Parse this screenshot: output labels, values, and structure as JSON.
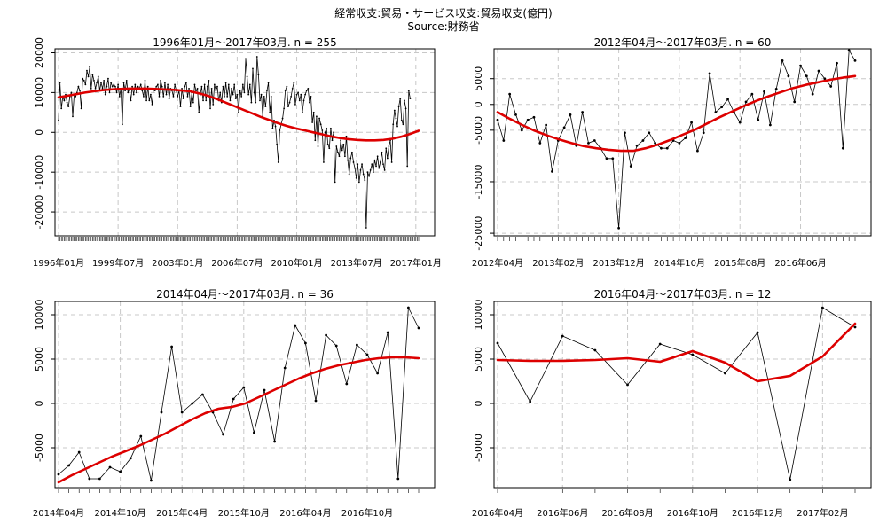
{
  "header": {
    "title": "経常収支:貿易・サービス収支:貿易収支(億円)",
    "source": "Source:財務省"
  },
  "colors": {
    "data_line": "#000000",
    "trend_line": "#dd0000",
    "grid": "#c8c8c8"
  },
  "chart_data": [
    {
      "type": "line",
      "title": "1996年01月～2017年03月. n = 255",
      "xlabel": "",
      "ylabel": "",
      "ylim": [
        -26000,
        21000
      ],
      "yticks": [
        -20000,
        -10000,
        0,
        10000,
        20000
      ],
      "xtick_labels": [
        "1996年01月",
        "1999年07月",
        "2003年01月",
        "2006年07月",
        "2010年01月",
        "2013年07月",
        "2017年01月"
      ],
      "xtick_index": [
        0,
        42,
        84,
        126,
        168,
        210,
        252
      ],
      "n": 255,
      "grid": true,
      "series": [
        {
          "values": [
            3000,
            12500,
            6000,
            9000,
            8000,
            9500,
            7500,
            6500,
            9000,
            10000,
            4000,
            9500,
            9000,
            10000,
            11500,
            10500,
            6000,
            13500,
            13000,
            12000,
            15500,
            14000,
            16500,
            11000,
            14500,
            13000,
            11000,
            12500,
            14000,
            10500,
            12500,
            11000,
            13000,
            9500,
            11500,
            13500,
            10000,
            12500,
            11500,
            12000,
            11500,
            10000,
            12000,
            9000,
            11000,
            2000,
            12500,
            10500,
            13000,
            10000,
            11000,
            8000,
            11500,
            9500,
            12000,
            10000,
            11500,
            11000,
            12000,
            10500,
            9000,
            13000,
            8000,
            11500,
            8000,
            9500,
            7000,
            11000,
            10500,
            11500,
            12000,
            9000,
            13000,
            11500,
            9000,
            12500,
            9500,
            12000,
            8500,
            11000,
            10500,
            9000,
            12000,
            10500,
            9000,
            10500,
            6500,
            11000,
            8500,
            11500,
            12500,
            9000,
            11000,
            6500,
            10000,
            7500,
            12000,
            10500,
            11000,
            5000,
            9500,
            11500,
            8000,
            12000,
            8000,
            11500,
            13000,
            6000,
            11000,
            7000,
            12000,
            10500,
            11500,
            8000,
            10000,
            7500,
            11500,
            9000,
            12500,
            9000,
            12000,
            8000,
            11000,
            9500,
            12000,
            8500,
            9500,
            5000,
            10500,
            9000,
            12000,
            10000,
            18500,
            14000,
            9500,
            12000,
            7500,
            16000,
            10000,
            7500,
            19000,
            14500,
            8000,
            9500,
            4000,
            9000,
            6500,
            10500,
            12500,
            5000,
            9000,
            1000,
            3000,
            1500,
            -3000,
            -7500,
            500,
            2000,
            3500,
            6000,
            10500,
            11500,
            6500,
            7500,
            9000,
            11000,
            12500,
            7000,
            9500,
            10000,
            8000,
            9500,
            5000,
            8000,
            9500,
            10500,
            11000,
            7500,
            9000,
            2500,
            5000,
            -2000,
            4000,
            -3500,
            3500,
            2000,
            500,
            -7500,
            0,
            1000,
            -3000,
            -4000,
            1000,
            -2000,
            0,
            -12500,
            -3500,
            -5000,
            -6000,
            -2000,
            -4500,
            -3000,
            -6000,
            -1000,
            -7000,
            -10500,
            -6500,
            -5000,
            -7500,
            -9000,
            -11500,
            -8000,
            -12500,
            -9500,
            -8000,
            -10500,
            -12000,
            -24000,
            -10000,
            -11000,
            -9500,
            -8000,
            -10000,
            -7000,
            -8500,
            -6000,
            -9000,
            -7500,
            -5000,
            -8000,
            -9500,
            -4000,
            -6500,
            -3500,
            -2000,
            -7500,
            2000,
            5500,
            3500,
            1500,
            6500,
            8500,
            3000,
            2000,
            8000,
            6000,
            -8500,
            10500,
            8500
          ]
        },
        {
          "values": [
            8800,
            9200,
            9600,
            10000,
            10300,
            10600,
            10800,
            10900,
            11000,
            11000,
            11000,
            10900,
            10800,
            10700,
            10500,
            10300,
            9800,
            9200,
            8400,
            7500,
            6600,
            5700,
            4800,
            3900,
            3100,
            2300,
            1600,
            1000,
            500,
            0,
            -500,
            -1000,
            -1400,
            -1700,
            -1900,
            -2000,
            -2000,
            -1900,
            -1600,
            -1100,
            -400,
            400
          ]
        }
      ]
    },
    {
      "type": "line",
      "title": "2012年04月～2017年03月. n = 60",
      "xlabel": "",
      "ylabel": "",
      "ylim": [
        -25500,
        10800
      ],
      "yticks": [
        -25000,
        -15000,
        -5000,
        0,
        5000
      ],
      "xtick_labels": [
        "2012年04月",
        "2013年02月",
        "2013年12月",
        "2014年10月",
        "2015年08月",
        "2016年06月"
      ],
      "xtick_index": [
        0,
        10,
        20,
        30,
        40,
        50
      ],
      "n": 60,
      "grid": true,
      "series": [
        {
          "values": [
            -3000,
            -7000,
            2000,
            -2000,
            -5000,
            -3000,
            -2500,
            -7500,
            -4000,
            -13000,
            -7000,
            -4500,
            -2000,
            -8000,
            -1500,
            -7500,
            -7000,
            -8500,
            -10500,
            -10500,
            -24000,
            -5500,
            -12000,
            -8000,
            -7000,
            -5500,
            -7500,
            -8500,
            -8500,
            -7000,
            -7500,
            -6500,
            -3500,
            -9000,
            -5500,
            6000,
            -1500,
            -500,
            1000,
            -1500,
            -3500,
            500,
            2000,
            -3000,
            2500,
            -4000,
            3000,
            8500,
            5500,
            500,
            7500,
            5500,
            2000,
            6500,
            5000,
            3500,
            8000,
            -8500,
            10500,
            8500
          ]
        },
        {
          "values": [
            -1500,
            -2800,
            -4000,
            -5100,
            -6000,
            -6800,
            -7500,
            -8100,
            -8500,
            -8800,
            -9000,
            -9000,
            -8500,
            -7800,
            -6900,
            -5900,
            -4900,
            -3700,
            -2500,
            -1400,
            -300,
            700,
            1600,
            2400,
            3200,
            3800,
            4300,
            4800,
            5200,
            5500
          ]
        }
      ]
    },
    {
      "type": "line",
      "title": "2014年04月～2017年03月. n = 36",
      "xlabel": "",
      "ylabel": "",
      "ylim": [
        -9500,
        11500
      ],
      "yticks": [
        -5000,
        0,
        5000,
        10000
      ],
      "xtick_labels": [
        "2014年04月",
        "2014年10月",
        "2015年04月",
        "2015年10月",
        "2016年04月",
        "2016年10月"
      ],
      "xtick_index": [
        0,
        6,
        12,
        18,
        24,
        30
      ],
      "n": 36,
      "grid": true,
      "series": [
        {
          "values": [
            -8000,
            -7000,
            -5500,
            -8500,
            -8500,
            -7200,
            -7700,
            -6200,
            -3700,
            -8700,
            -1000,
            6400,
            -1000,
            0,
            1000,
            -1000,
            -3500,
            500,
            1800,
            -3300,
            1500,
            -4300,
            4000,
            8800,
            6800,
            300,
            7700,
            6500,
            2200,
            6600,
            5500,
            3400,
            8000,
            -8500,
            10800,
            8500
          ]
        },
        {
          "values": [
            -8900,
            -8100,
            -7400,
            -6700,
            -6000,
            -5400,
            -4800,
            -4100,
            -3400,
            -2600,
            -1800,
            -1100,
            -600,
            -400,
            0,
            700,
            1400,
            2100,
            2800,
            3400,
            3900,
            4300,
            4600,
            4900,
            5100,
            5200,
            5200,
            5100
          ]
        }
      ]
    },
    {
      "type": "line",
      "title": "2016年04月～2017年03月. n = 12",
      "xlabel": "",
      "ylabel": "",
      "ylim": [
        -9500,
        11500
      ],
      "yticks": [
        -5000,
        0,
        5000,
        10000
      ],
      "xtick_labels": [
        "2016年04月",
        "2016年06月",
        "2016年08月",
        "2016年10月",
        "2016年12月",
        "2017年02月"
      ],
      "xtick_index": [
        0,
        2,
        4,
        6,
        8,
        10
      ],
      "n": 12,
      "grid": true,
      "series": [
        {
          "values": [
            6800,
            200,
            7600,
            6000,
            2100,
            6700,
            5500,
            3400,
            8000,
            -8600,
            10800,
            8600
          ]
        },
        {
          "values": [
            4900,
            4800,
            4800,
            4900,
            5100,
            4700,
            5900,
            4600,
            2500,
            3100,
            5300,
            9000
          ]
        }
      ]
    }
  ]
}
